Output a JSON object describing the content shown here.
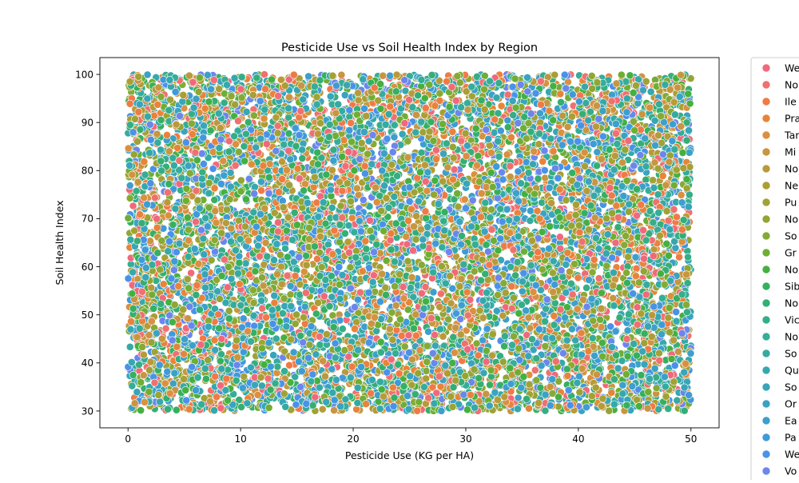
{
  "chart_data": {
    "type": "scatter",
    "title": "Pesticide Use vs Soil Health Index by Region",
    "xlabel": "Pesticide Use (KG per HA)",
    "ylabel": "Soil Health Index",
    "xlim": [
      -2.5,
      52.5
    ],
    "ylim": [
      26.5,
      103.5
    ],
    "xticks": [
      0,
      10,
      20,
      30,
      40,
      50
    ],
    "yticks": [
      30,
      40,
      50,
      60,
      70,
      80,
      90,
      100
    ],
    "grid": false,
    "legend_position": "right (outside plot, clipped)",
    "point_count_estimate": 10000,
    "x_range_observed": [
      0,
      50
    ],
    "y_range_observed": [
      30,
      100
    ],
    "distribution_note": "points approximately uniformly spread across x 0–50 and y 30–100",
    "series": [
      {
        "name": "We",
        "color": "#f0697a"
      },
      {
        "name": "No",
        "color": "#f07070"
      },
      {
        "name": "Ile",
        "color": "#f07a45"
      },
      {
        "name": "Pra",
        "color": "#e8843a"
      },
      {
        "name": "Tar",
        "color": "#d99040"
      },
      {
        "name": "Mi",
        "color": "#c89540"
      },
      {
        "name": "No",
        "color": "#b99a3a"
      },
      {
        "name": "Ne",
        "color": "#aa9e35"
      },
      {
        "name": "Pu",
        "color": "#a0a235"
      },
      {
        "name": "No",
        "color": "#93a535"
      },
      {
        "name": "So",
        "color": "#85aa35"
      },
      {
        "name": "Gr",
        "color": "#6fae35"
      },
      {
        "name": "No",
        "color": "#45b040"
      },
      {
        "name": "Sib",
        "color": "#35b060"
      },
      {
        "name": "No",
        "color": "#35ae75"
      },
      {
        "name": "Vic",
        "color": "#35ae88"
      },
      {
        "name": "No",
        "color": "#35ad98"
      },
      {
        "name": "So",
        "color": "#35aaa3"
      },
      {
        "name": "Qu",
        "color": "#36a8ad"
      },
      {
        "name": "So",
        "color": "#38a5b8"
      },
      {
        "name": "Or",
        "color": "#3ba2c2"
      },
      {
        "name": "Ea",
        "color": "#3d9fcc"
      },
      {
        "name": "Pa",
        "color": "#409ad8"
      },
      {
        "name": "We",
        "color": "#4a92e8"
      },
      {
        "name": "Vo",
        "color": "#6b86ec"
      }
    ]
  }
}
